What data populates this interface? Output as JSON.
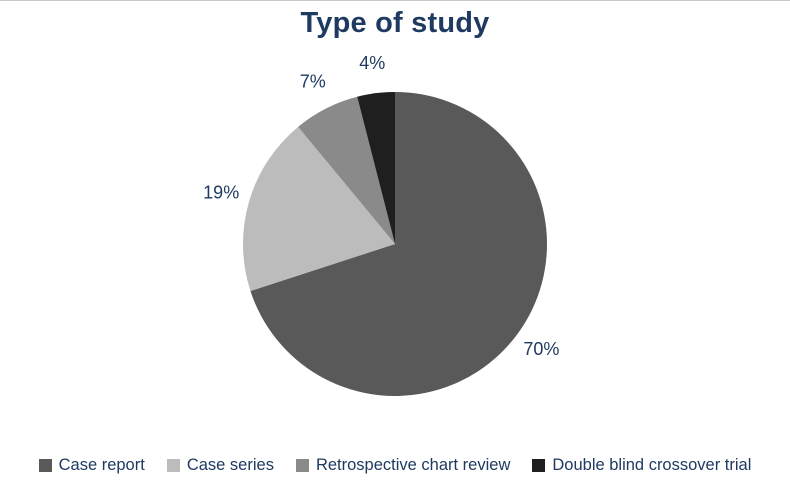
{
  "title": "Type of study",
  "chart_data": {
    "type": "pie",
    "title": "Type of study",
    "legend_position": "bottom",
    "direction": "clockwise",
    "start_angle_deg": 0,
    "text_color": "#1f3a60",
    "background_color": "#ffffff",
    "segments": [
      {
        "label": "Case report",
        "value": 70,
        "pct_label": "70%",
        "color": "#595959"
      },
      {
        "label": "Case series",
        "value": 19,
        "pct_label": "19%",
        "color": "#bcbcbc"
      },
      {
        "label": "Retrospective chart review",
        "value": 7,
        "pct_label": "7%",
        "color": "#8a8a8a"
      },
      {
        "label": "Double blind crossover trial",
        "value": 4,
        "pct_label": "4%",
        "color": "#1f1f1f"
      }
    ]
  }
}
